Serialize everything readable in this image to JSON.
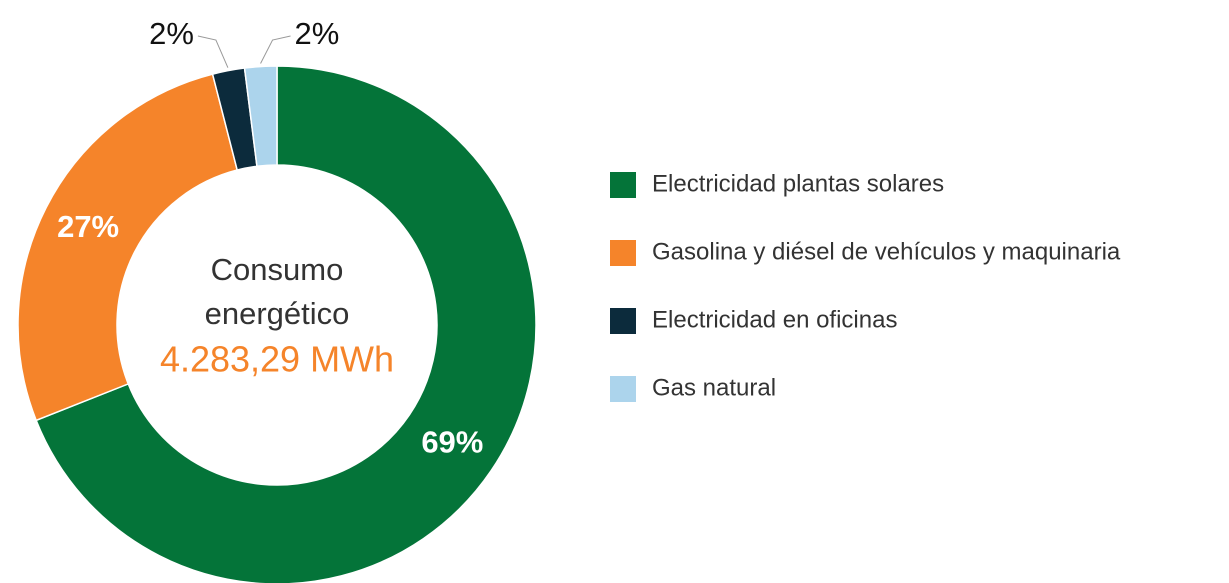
{
  "chart_data": {
    "type": "donut",
    "center_text": [
      "Consumo",
      "energético"
    ],
    "center_value": "4.283,29 MWh",
    "categories": [
      "Electricidad plantas solares",
      "Gasolina y diésel de vehículos y maquinaria",
      "Electricidad en oficinas",
      "Gas natural"
    ],
    "values": [
      69,
      27,
      2,
      2
    ],
    "value_labels": [
      "69%",
      "27%",
      "2%",
      "2%"
    ],
    "colors": [
      "#047439",
      "#f5842a",
      "#0c2b3c",
      "#acd4ec"
    ],
    "legend": "right"
  }
}
